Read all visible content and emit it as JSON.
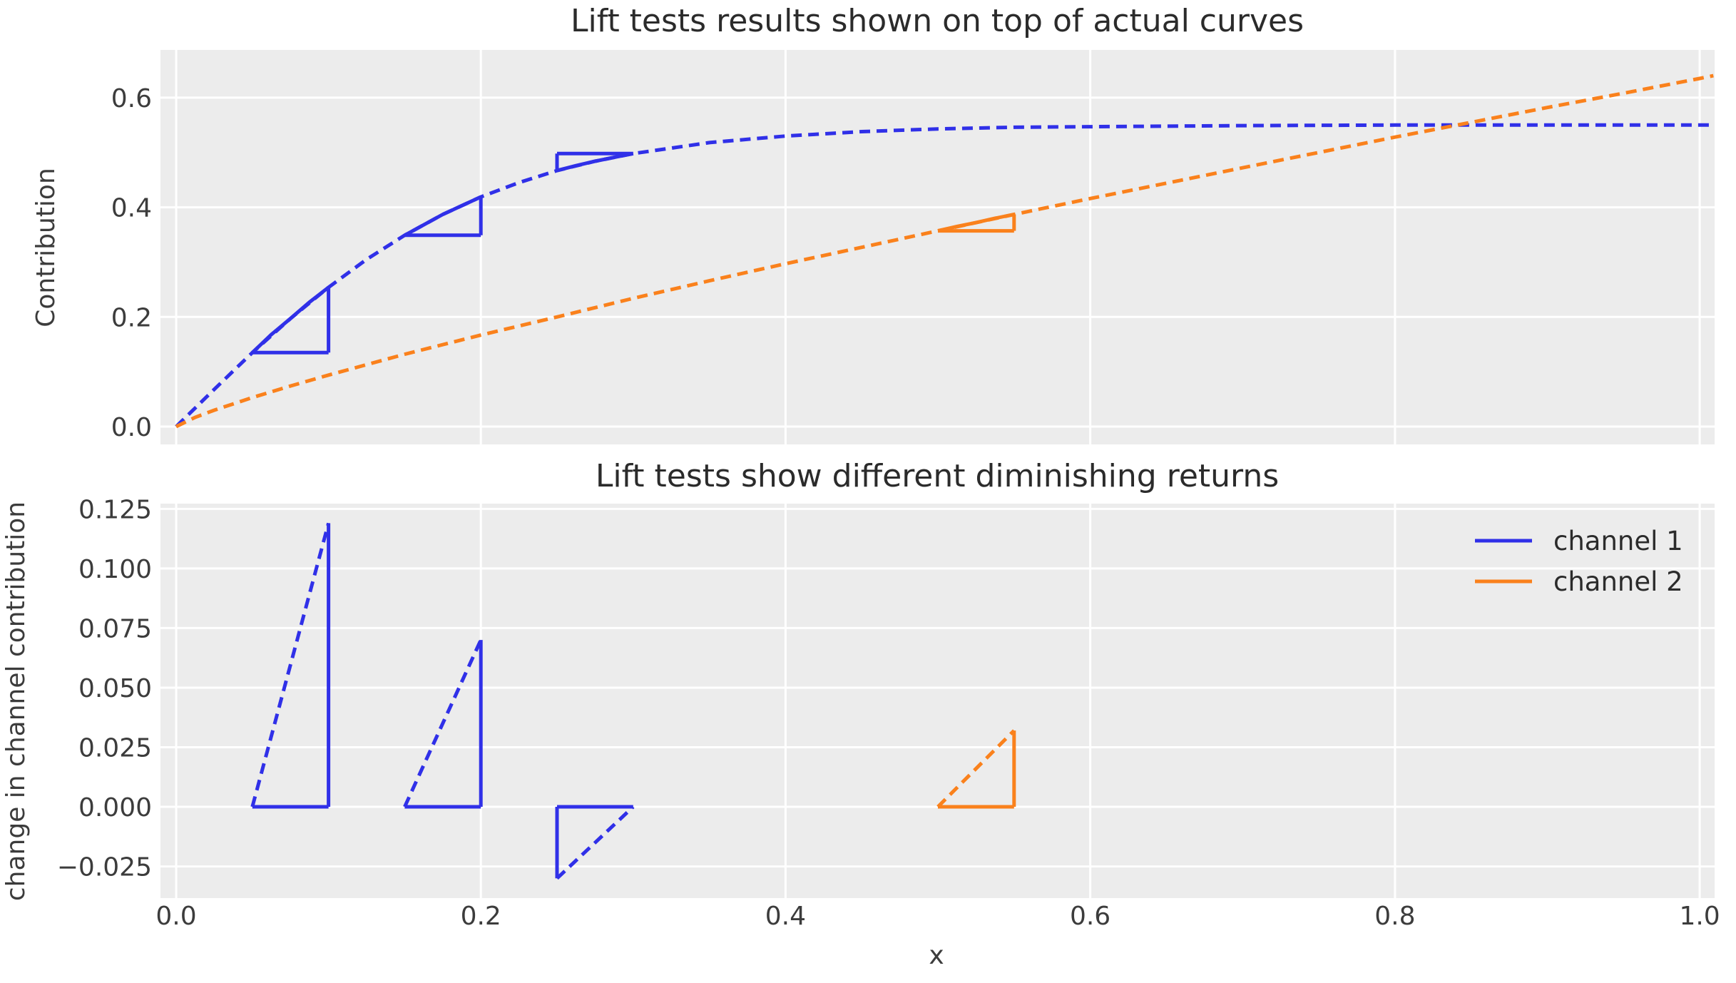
{
  "figure": {
    "background": "#ffffff",
    "axes_background": "#ececec",
    "grid_color": "#ffffff",
    "channel1_color": "#3030e8",
    "channel2_color": "#fa811c"
  },
  "chart_data": [
    {
      "type": "line",
      "title": "Lift tests results shown on top of actual curves",
      "xlabel": "",
      "ylabel": "Contribution",
      "xlim": [
        -0.0103,
        1.0098
      ],
      "ylim": [
        -0.0325,
        0.687
      ],
      "grid": true,
      "x_ticks": [
        0.0,
        0.2,
        0.4,
        0.6,
        0.8,
        1.0
      ],
      "y_ticks": [
        0.0,
        0.2,
        0.4,
        0.6
      ],
      "y_tick_labels": [
        "0.0",
        "0.2",
        "0.4",
        "0.6"
      ],
      "lift_tests": [
        {
          "channel": "channel 1",
          "x_start": 0.05,
          "x_end": 0.1,
          "contribution_start": 0.135,
          "contribution_end": 0.254,
          "lift": 0.119
        },
        {
          "channel": "channel 1",
          "x_start": 0.15,
          "x_end": 0.2,
          "contribution_start": 0.349,
          "contribution_end": 0.419,
          "lift": 0.07
        },
        {
          "channel": "channel 1",
          "x_start": 0.3,
          "x_end": 0.25,
          "contribution_start": 0.498,
          "contribution_end": 0.467,
          "lift": -0.03
        },
        {
          "channel": "channel 2",
          "x_start": 0.5,
          "x_end": 0.55,
          "contribution_start": 0.357,
          "contribution_end": 0.387,
          "lift": 0.032
        }
      ],
      "series": [
        {
          "name": "channel-1-response-curve",
          "color": "#3030e8",
          "dash": true,
          "width": 5,
          "points": [
            [
              0,
              0
            ],
            [
              0.0125,
              0.034
            ],
            [
              0.025,
              0.068
            ],
            [
              0.05,
              0.135
            ],
            [
              0.075,
              0.197
            ],
            [
              0.1,
              0.254
            ],
            [
              0.125,
              0.305
            ],
            [
              0.15,
              0.349
            ],
            [
              0.175,
              0.387
            ],
            [
              0.2,
              0.419
            ],
            [
              0.225,
              0.445
            ],
            [
              0.25,
              0.467
            ],
            [
              0.275,
              0.484
            ],
            [
              0.3,
              0.498
            ],
            [
              0.35,
              0.518
            ],
            [
              0.4,
              0.53
            ],
            [
              0.45,
              0.538
            ],
            [
              0.5,
              0.543
            ],
            [
              0.55,
              0.546
            ],
            [
              0.6,
              0.547
            ],
            [
              0.7,
              0.549
            ],
            [
              0.8,
              0.55
            ],
            [
              0.9,
              0.55
            ],
            [
              1.0,
              0.55
            ],
            [
              1.009,
              0.55
            ]
          ]
        },
        {
          "name": "channel-2-response-curve",
          "color": "#fa811c",
          "dash": true,
          "width": 5,
          "points": [
            [
              0,
              0
            ],
            [
              0.0125,
              0.017
            ],
            [
              0.025,
              0.03
            ],
            [
              0.05,
              0.053
            ],
            [
              0.075,
              0.074
            ],
            [
              0.1,
              0.094
            ],
            [
              0.15,
              0.132
            ],
            [
              0.2,
              0.167
            ],
            [
              0.25,
              0.2
            ],
            [
              0.3,
              0.234
            ],
            [
              0.35,
              0.266
            ],
            [
              0.4,
              0.297
            ],
            [
              0.45,
              0.327
            ],
            [
              0.5,
              0.357
            ],
            [
              0.55,
              0.387
            ],
            [
              0.6,
              0.416
            ],
            [
              0.65,
              0.444
            ],
            [
              0.7,
              0.472
            ],
            [
              0.75,
              0.5
            ],
            [
              0.8,
              0.528
            ],
            [
              0.85,
              0.555
            ],
            [
              0.9,
              0.582
            ],
            [
              0.95,
              0.608
            ],
            [
              1.0,
              0.635
            ],
            [
              1.009,
              0.64
            ]
          ]
        },
        {
          "name": "lift-test-1-curve-segment",
          "color": "#3030e8",
          "dash": false,
          "width": 5,
          "points": [
            [
              0.05,
              0.135
            ],
            [
              0.0625,
              0.168
            ],
            [
              0.075,
              0.197
            ],
            [
              0.0875,
              0.227
            ],
            [
              0.1,
              0.254
            ]
          ]
        },
        {
          "name": "lift-test-1-base",
          "color": "#3030e8",
          "dash": false,
          "width": 5,
          "points": [
            [
              0.05,
              0.135
            ],
            [
              0.1,
              0.135
            ]
          ]
        },
        {
          "name": "lift-test-1-riser",
          "color": "#3030e8",
          "dash": false,
          "width": 5,
          "points": [
            [
              0.1,
              0.135
            ],
            [
              0.1,
              0.254
            ]
          ]
        },
        {
          "name": "lift-test-2-curve-segment",
          "color": "#3030e8",
          "dash": false,
          "width": 5,
          "points": [
            [
              0.15,
              0.349
            ],
            [
              0.1625,
              0.368
            ],
            [
              0.175,
              0.387
            ],
            [
              0.1875,
              0.403
            ],
            [
              0.2,
              0.419
            ]
          ]
        },
        {
          "name": "lift-test-2-base",
          "color": "#3030e8",
          "dash": false,
          "width": 5,
          "points": [
            [
              0.15,
              0.349
            ],
            [
              0.2,
              0.349
            ]
          ]
        },
        {
          "name": "lift-test-2-riser",
          "color": "#3030e8",
          "dash": false,
          "width": 5,
          "points": [
            [
              0.2,
              0.349
            ],
            [
              0.2,
              0.419
            ]
          ]
        },
        {
          "name": "lift-test-3-curve-segment",
          "color": "#3030e8",
          "dash": false,
          "width": 5,
          "points": [
            [
              0.25,
              0.467
            ],
            [
              0.2625,
              0.476
            ],
            [
              0.275,
              0.484
            ],
            [
              0.2875,
              0.491
            ],
            [
              0.3,
              0.498
            ]
          ]
        },
        {
          "name": "lift-test-3-top",
          "color": "#3030e8",
          "dash": false,
          "width": 5,
          "points": [
            [
              0.25,
              0.498
            ],
            [
              0.3,
              0.498
            ]
          ]
        },
        {
          "name": "lift-test-3-riser",
          "color": "#3030e8",
          "dash": false,
          "width": 5,
          "points": [
            [
              0.25,
              0.467
            ],
            [
              0.25,
              0.498
            ]
          ]
        },
        {
          "name": "lift-test-4-curve-segment",
          "color": "#fa811c",
          "dash": false,
          "width": 5,
          "points": [
            [
              0.5,
              0.357
            ],
            [
              0.5125,
              0.365
            ],
            [
              0.525,
              0.372
            ],
            [
              0.5375,
              0.38
            ],
            [
              0.55,
              0.387
            ]
          ]
        },
        {
          "name": "lift-test-4-base",
          "color": "#fa811c",
          "dash": false,
          "width": 5,
          "points": [
            [
              0.5,
              0.357
            ],
            [
              0.55,
              0.357
            ]
          ]
        },
        {
          "name": "lift-test-4-riser",
          "color": "#fa811c",
          "dash": false,
          "width": 5,
          "points": [
            [
              0.55,
              0.357
            ],
            [
              0.55,
              0.387
            ]
          ]
        }
      ]
    },
    {
      "type": "line",
      "title": "Lift tests show different diminishing returns",
      "xlabel": "x",
      "ylabel": "change in channel contribution",
      "xlim": [
        -0.0103,
        1.0098
      ],
      "ylim": [
        -0.0383,
        0.1272
      ],
      "grid": true,
      "x_ticks": [
        0.0,
        0.2,
        0.4,
        0.6,
        0.8,
        1.0
      ],
      "x_tick_labels": [
        "0.0",
        "0.2",
        "0.4",
        "0.6",
        "0.8",
        "1.0"
      ],
      "y_ticks": [
        0.125,
        0.1,
        0.075,
        0.05,
        0.025,
        0.0,
        -0.025
      ],
      "y_tick_labels": [
        "0.125",
        "0.100",
        "0.075",
        "0.050",
        "0.025",
        "0.000",
        "−0.025"
      ],
      "legend": {
        "position": "upper right",
        "items": [
          {
            "label": "channel 1",
            "color": "#3030e8"
          },
          {
            "label": "channel 2",
            "color": "#fa811c"
          }
        ]
      },
      "changes": [
        {
          "channel": "channel 1",
          "x_start": 0.05,
          "x_end": 0.1,
          "delta": 0.119
        },
        {
          "channel": "channel 1",
          "x_start": 0.15,
          "x_end": 0.2,
          "delta": 0.07
        },
        {
          "channel": "channel 1",
          "x_start": 0.25,
          "x_end": 0.3,
          "delta": -0.03
        },
        {
          "channel": "channel 2",
          "x_start": 0.5,
          "x_end": 0.55,
          "delta": 0.032
        }
      ],
      "series": [
        {
          "name": "change-1-hypotenuse",
          "color": "#3030e8",
          "dash": true,
          "width": 5,
          "points": [
            [
              0.05,
              0
            ],
            [
              0.1,
              0.119
            ]
          ]
        },
        {
          "name": "change-1-base",
          "color": "#3030e8",
          "dash": false,
          "width": 5,
          "points": [
            [
              0.05,
              0
            ],
            [
              0.1,
              0
            ]
          ]
        },
        {
          "name": "change-1-riser",
          "color": "#3030e8",
          "dash": false,
          "width": 5,
          "points": [
            [
              0.1,
              0
            ],
            [
              0.1,
              0.119
            ]
          ]
        },
        {
          "name": "change-2-hypotenuse",
          "color": "#3030e8",
          "dash": true,
          "width": 5,
          "points": [
            [
              0.15,
              0
            ],
            [
              0.2,
              0.07
            ]
          ]
        },
        {
          "name": "change-2-base",
          "color": "#3030e8",
          "dash": false,
          "width": 5,
          "points": [
            [
              0.15,
              0
            ],
            [
              0.2,
              0
            ]
          ]
        },
        {
          "name": "change-2-riser",
          "color": "#3030e8",
          "dash": false,
          "width": 5,
          "points": [
            [
              0.2,
              0
            ],
            [
              0.2,
              0.07
            ]
          ]
        },
        {
          "name": "change-3-hypotenuse",
          "color": "#3030e8",
          "dash": true,
          "width": 5,
          "points": [
            [
              0.25,
              -0.03
            ],
            [
              0.3,
              0
            ]
          ]
        },
        {
          "name": "change-3-base",
          "color": "#3030e8",
          "dash": false,
          "width": 5,
          "points": [
            [
              0.25,
              0
            ],
            [
              0.3,
              0
            ]
          ]
        },
        {
          "name": "change-3-riser",
          "color": "#3030e8",
          "dash": false,
          "width": 5,
          "points": [
            [
              0.25,
              0
            ],
            [
              0.25,
              -0.03
            ]
          ]
        },
        {
          "name": "change-4-hypotenuse",
          "color": "#fa811c",
          "dash": true,
          "width": 5,
          "points": [
            [
              0.5,
              0
            ],
            [
              0.55,
              0.032
            ]
          ]
        },
        {
          "name": "change-4-base",
          "color": "#fa811c",
          "dash": false,
          "width": 5,
          "points": [
            [
              0.5,
              0
            ],
            [
              0.55,
              0
            ]
          ]
        },
        {
          "name": "change-4-riser",
          "color": "#fa811c",
          "dash": false,
          "width": 5,
          "points": [
            [
              0.55,
              0
            ],
            [
              0.55,
              0.032
            ]
          ]
        }
      ]
    }
  ]
}
